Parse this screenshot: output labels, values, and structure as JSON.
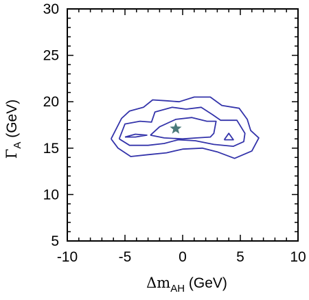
{
  "chart_data": {
    "type": "contour",
    "xlabel": {
      "symbol": "Δm",
      "subscript": "AH",
      "unit": " (GeV)"
    },
    "ylabel": {
      "symbol": "Γ",
      "subscript": "A",
      "unit": " (GeV)"
    },
    "xlim": [
      -10,
      10
    ],
    "ylim": [
      5,
      30
    ],
    "xticks": [
      -10,
      -5,
      0,
      5,
      10
    ],
    "yticks": [
      5,
      10,
      15,
      20,
      25,
      30
    ],
    "x_minor_step": 1,
    "y_minor_step": 1,
    "grid": false,
    "contour_color": "#3333aa",
    "marker_color": "#4a7a7a",
    "contours": [
      {
        "level": "outer",
        "points": [
          [
            -6.2,
            16.0
          ],
          [
            -5.3,
            18.2
          ],
          [
            -4.6,
            19.0
          ],
          [
            -3.4,
            19.4
          ],
          [
            -2.6,
            20.2
          ],
          [
            -1.4,
            20.1
          ],
          [
            -0.3,
            20.0
          ],
          [
            1.0,
            20.5
          ],
          [
            2.4,
            20.5
          ],
          [
            3.4,
            19.6
          ],
          [
            4.9,
            19.3
          ],
          [
            5.6,
            18.1
          ],
          [
            5.9,
            16.9
          ],
          [
            6.6,
            16.1
          ],
          [
            6.0,
            14.7
          ],
          [
            4.5,
            13.9
          ],
          [
            3.0,
            14.6
          ],
          [
            1.7,
            15.0
          ],
          [
            0.0,
            14.9
          ],
          [
            -1.4,
            14.5
          ],
          [
            -3.0,
            14.3
          ],
          [
            -4.5,
            14.1
          ],
          [
            -5.6,
            15.0
          ],
          [
            -6.2,
            16.0
          ]
        ]
      },
      {
        "level": "middle",
        "points": [
          [
            -5.5,
            16.0
          ],
          [
            -5.0,
            17.6
          ],
          [
            -3.7,
            17.9
          ],
          [
            -2.7,
            17.8
          ],
          [
            -2.4,
            18.9
          ],
          [
            -0.9,
            19.4
          ],
          [
            0.3,
            19.2
          ],
          [
            1.6,
            19.4
          ],
          [
            2.6,
            18.6
          ],
          [
            3.3,
            18.0
          ],
          [
            4.7,
            18.0
          ],
          [
            5.4,
            16.6
          ],
          [
            5.3,
            15.7
          ],
          [
            4.4,
            15.2
          ],
          [
            2.7,
            15.4
          ],
          [
            1.1,
            15.8
          ],
          [
            -0.4,
            15.9
          ],
          [
            -1.6,
            15.5
          ],
          [
            -3.0,
            15.3
          ],
          [
            -4.6,
            15.3
          ],
          [
            -5.5,
            16.0
          ]
        ]
      },
      {
        "level": "inner",
        "points": [
          [
            -2.8,
            16.4
          ],
          [
            -2.0,
            17.3
          ],
          [
            -0.6,
            18.1
          ],
          [
            0.8,
            18.3
          ],
          [
            2.1,
            17.9
          ],
          [
            2.9,
            17.9
          ],
          [
            2.7,
            16.6
          ],
          [
            2.4,
            16.2
          ],
          [
            1.2,
            16.1
          ],
          [
            0.0,
            16.0
          ],
          [
            -1.6,
            16.1
          ],
          [
            -2.8,
            16.4
          ]
        ]
      },
      {
        "level": "inner-left",
        "points": [
          [
            -5.0,
            16.2
          ],
          [
            -4.1,
            16.5
          ],
          [
            -3.1,
            16.4
          ],
          [
            -4.1,
            16.2
          ],
          [
            -5.0,
            16.2
          ]
        ]
      },
      {
        "level": "inner-right",
        "points": [
          [
            3.6,
            15.9
          ],
          [
            4.0,
            16.6
          ],
          [
            4.4,
            15.9
          ],
          [
            3.6,
            15.9
          ]
        ]
      }
    ],
    "best_fit": {
      "x": -0.6,
      "y": 17.1,
      "marker": "star-icon"
    }
  }
}
